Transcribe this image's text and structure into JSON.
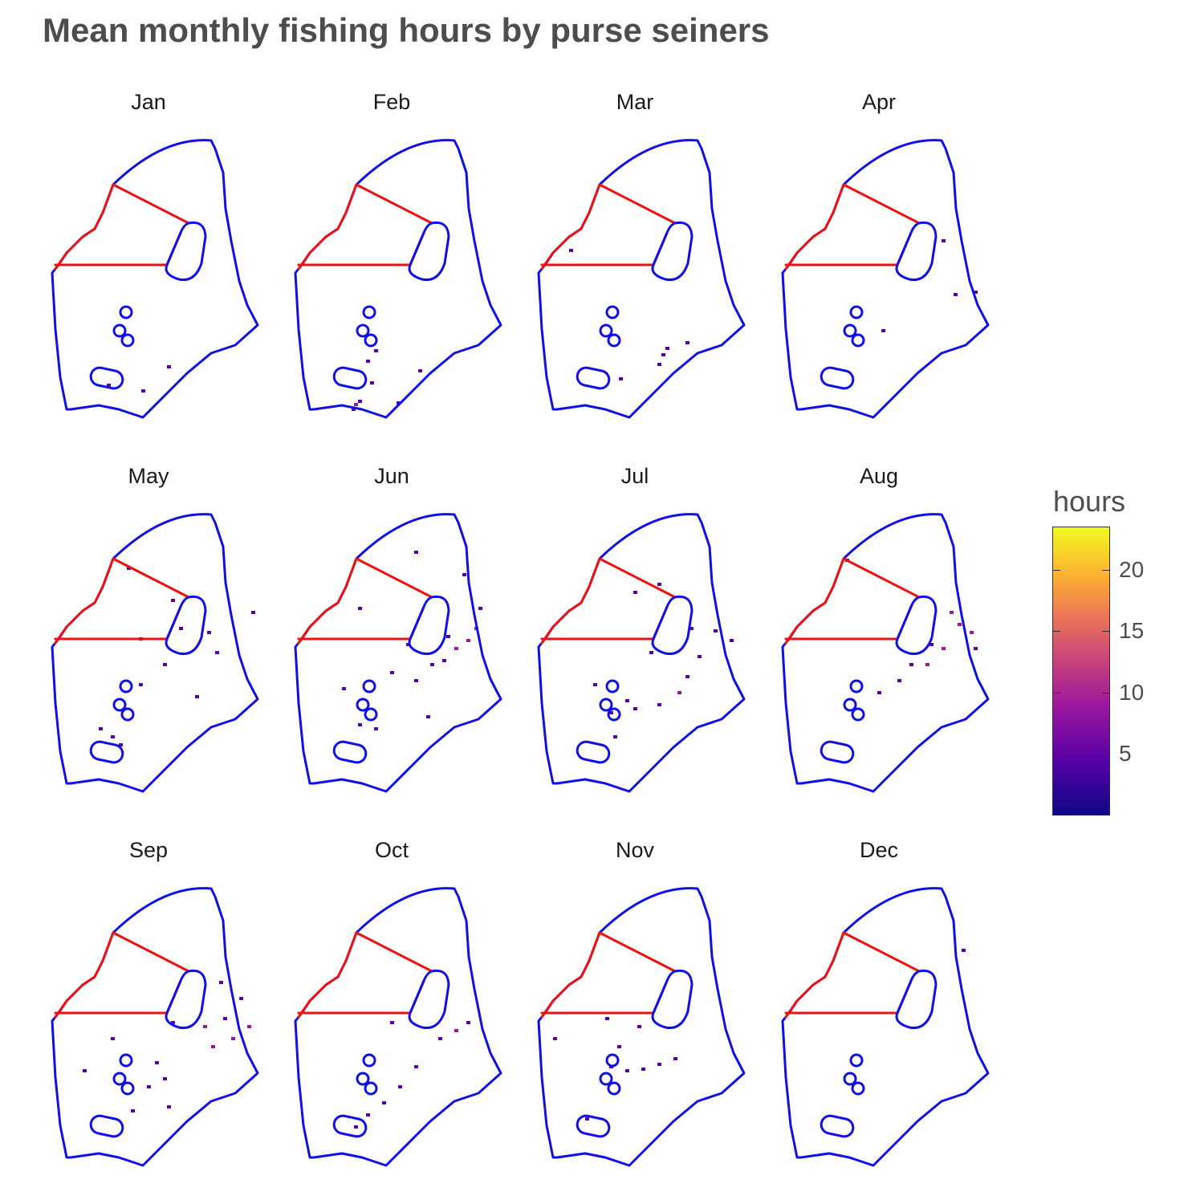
{
  "title": "Mean monthly fishing hours by purse seiners",
  "legend": {
    "title": "hours",
    "min": 0,
    "max": 23.5,
    "ticks": [
      "5",
      "10",
      "15",
      "20"
    ],
    "tick_values": [
      5,
      10,
      15,
      20
    ],
    "palette": [
      "#0d0887",
      "#5c01a6",
      "#9c179e",
      "#cc4778",
      "#ed7953",
      "#fdb42f",
      "#f0f921"
    ]
  },
  "colors": {
    "boundary": "#1010e6",
    "zone_lines": "#ee1111"
  },
  "months": [
    {
      "label": "Jan",
      "cells": [
        [
          145,
          285,
          4
        ],
        [
          113,
          315,
          3
        ],
        [
          70,
          308,
          2
        ]
      ]
    },
    {
      "label": "Feb",
      "cells": [
        [
          75,
          332,
          6
        ],
        [
          80,
          328,
          5
        ],
        [
          72,
          338,
          4
        ],
        [
          155,
          290,
          4
        ],
        [
          128,
          330,
          3
        ],
        [
          95,
          305,
          3
        ],
        [
          90,
          278,
          2
        ],
        [
          100,
          265,
          3
        ]
      ]
    },
    {
      "label": "Mar",
      "cells": [
        [
          155,
          270,
          3
        ],
        [
          160,
          262,
          4
        ],
        [
          150,
          282,
          4
        ],
        [
          185,
          255,
          3
        ],
        [
          40,
          140,
          3
        ],
        [
          102,
          300,
          2
        ]
      ]
    },
    {
      "label": "Apr",
      "cells": [
        [
          200,
          128,
          3
        ],
        [
          240,
          192,
          5
        ],
        [
          215,
          195,
          3
        ],
        [
          125,
          240,
          4
        ]
      ]
    },
    {
      "label": "May",
      "cells": [
        [
          110,
          158,
          4
        ],
        [
          160,
          145,
          3
        ],
        [
          195,
          150,
          5
        ],
        [
          250,
          125,
          4
        ],
        [
          140,
          190,
          5
        ],
        [
          180,
          230,
          3
        ],
        [
          110,
          215,
          3
        ],
        [
          60,
          270,
          3
        ],
        [
          75,
          280,
          4
        ],
        [
          205,
          175,
          4
        ],
        [
          95,
          70,
          3
        ],
        [
          150,
          110,
          2
        ],
        [
          85,
          290,
          2
        ]
      ]
    },
    {
      "label": "Jun",
      "cells": [
        [
          200,
          170,
          6
        ],
        [
          215,
          160,
          7
        ],
        [
          225,
          145,
          6
        ],
        [
          230,
          120,
          5
        ],
        [
          190,
          155,
          5
        ],
        [
          150,
          210,
          4
        ],
        [
          120,
          200,
          3
        ],
        [
          80,
          265,
          4
        ],
        [
          100,
          270,
          4
        ],
        [
          60,
          220,
          3
        ],
        [
          140,
          165,
          3
        ],
        [
          185,
          185,
          4
        ],
        [
          210,
          78,
          2
        ],
        [
          150,
          50,
          3
        ],
        [
          80,
          120,
          3
        ],
        [
          165,
          255,
          3
        ],
        [
          170,
          190,
          4
        ]
      ]
    },
    {
      "label": "Jul",
      "cells": [
        [
          175,
          225,
          6
        ],
        [
          185,
          205,
          5
        ],
        [
          150,
          240,
          5
        ],
        [
          120,
          245,
          4
        ],
        [
          90,
          250,
          5
        ],
        [
          110,
          235,
          4
        ],
        [
          70,
          215,
          4
        ],
        [
          240,
          160,
          5
        ],
        [
          220,
          148,
          4
        ],
        [
          200,
          180,
          3
        ],
        [
          140,
          175,
          4
        ],
        [
          190,
          145,
          3
        ],
        [
          95,
          280,
          3
        ],
        [
          150,
          90,
          2
        ],
        [
          120,
          100,
          3
        ]
      ]
    },
    {
      "label": "Aug",
      "cells": [
        [
          220,
          140,
          7
        ],
        [
          235,
          150,
          6
        ],
        [
          200,
          170,
          6
        ],
        [
          180,
          190,
          6
        ],
        [
          160,
          190,
          5
        ],
        [
          210,
          125,
          6
        ],
        [
          240,
          170,
          5
        ],
        [
          145,
          210,
          4
        ],
        [
          120,
          225,
          3
        ],
        [
          185,
          165,
          5
        ],
        [
          80,
          60,
          3
        ]
      ]
    },
    {
      "label": "Sep",
      "cells": [
        [
          200,
          200,
          8
        ],
        [
          225,
          190,
          7
        ],
        [
          245,
          175,
          6
        ],
        [
          190,
          175,
          6
        ],
        [
          215,
          165,
          5
        ],
        [
          150,
          170,
          4
        ],
        [
          130,
          220,
          5
        ],
        [
          140,
          240,
          4
        ],
        [
          120,
          250,
          4
        ],
        [
          100,
          280,
          4
        ],
        [
          40,
          230,
          4
        ],
        [
          75,
          190,
          3
        ],
        [
          210,
          120,
          3
        ],
        [
          235,
          140,
          4
        ],
        [
          145,
          275,
          3
        ]
      ]
    },
    {
      "label": "Oct",
      "cells": [
        [
          200,
          180,
          6
        ],
        [
          215,
          170,
          4
        ],
        [
          180,
          190,
          4
        ],
        [
          150,
          225,
          3
        ],
        [
          130,
          250,
          3
        ],
        [
          110,
          270,
          3
        ],
        [
          90,
          285,
          3
        ],
        [
          120,
          170,
          2
        ],
        [
          75,
          300,
          2
        ]
      ]
    },
    {
      "label": "Nov",
      "cells": [
        [
          90,
          225,
          4
        ],
        [
          110,
          230,
          5
        ],
        [
          130,
          228,
          4
        ],
        [
          150,
          222,
          3
        ],
        [
          170,
          215,
          3
        ],
        [
          100,
          200,
          3
        ],
        [
          20,
          190,
          3
        ],
        [
          60,
          290,
          3
        ],
        [
          85,
          165,
          3
        ],
        [
          125,
          175,
          2
        ]
      ]
    },
    {
      "label": "Dec",
      "cells": [
        [
          225,
          80,
          2
        ]
      ]
    }
  ]
}
